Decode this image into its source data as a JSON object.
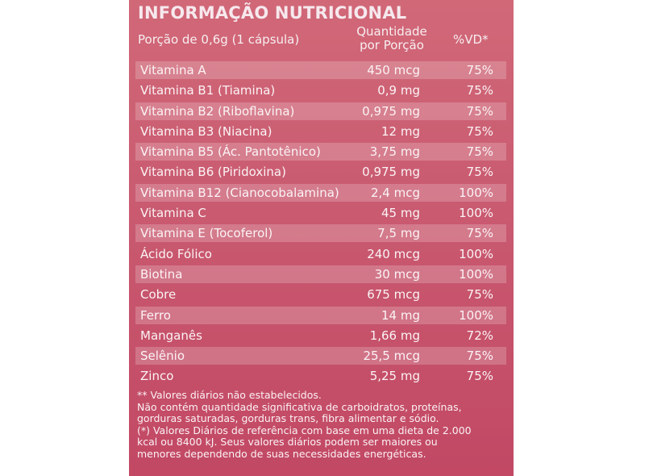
{
  "title": "INFORMAÇÃO NUTRICIONAL",
  "header": {
    "portion": "Porção de 0,6g    (1 cápsula)",
    "quantity_line1": "Quantidade",
    "quantity_line2": "por Porção",
    "vd": "%VD*"
  },
  "rows": [
    {
      "name": "Vitamina A",
      "amount": "450 mcg",
      "vd": "75%"
    },
    {
      "name": "Vitamina B1 (Tiamina)",
      "amount": "0,9 mg",
      "vd": "75%"
    },
    {
      "name": "Vitamina B2 (Riboflavina)",
      "amount": "0,975 mg",
      "vd": "75%"
    },
    {
      "name": "Vitamina B3 (Niacina)",
      "amount": "12 mg",
      "vd": "75%"
    },
    {
      "name": "Vitamina B5 (Ác. Pantotênico)",
      "amount": "3,75 mg",
      "vd": "75%"
    },
    {
      "name": "Vitamina B6 (Piridoxina)",
      "amount": "0,975 mg",
      "vd": "75%"
    },
    {
      "name": "Vitamina B12 (Cianocobalamina)",
      "amount": "2,4 mcg",
      "vd": "100%"
    },
    {
      "name": "Vitamina C",
      "amount": "45 mg",
      "vd": "100%"
    },
    {
      "name": "Vitamina E (Tocoferol)",
      "amount": "7,5 mg",
      "vd": "75%"
    },
    {
      "name": "Ácido Fólico",
      "amount": "240 mcg",
      "vd": "100%"
    },
    {
      "name": "Biotina",
      "amount": "30 mcg",
      "vd": "100%"
    },
    {
      "name": "Cobre",
      "amount": "675 mcg",
      "vd": "75%"
    },
    {
      "name": "Ferro",
      "amount": "14 mg",
      "vd": "100%"
    },
    {
      "name": "Manganês",
      "amount": "1,66 mg",
      "vd": "72%"
    },
    {
      "name": "Selênio",
      "amount": "25,5 mcg",
      "vd": "75%"
    },
    {
      "name": "Zinco",
      "amount": "5,25 mg",
      "vd": "75%"
    }
  ],
  "footnotes": [
    "** Valores diários  não estabelecidos.",
    "Não contém quantidade significativa de carboidratos, proteínas,",
    "gorduras saturadas, gorduras trans, fibra alimentar e sódio.",
    "(*) Valores Diários de referência com base em uma dieta de 2.000",
    "kcal ou 8400 kJ. Seus valores diários podem ser maiores ou",
    "menores dependendo de suas necessidades energéticas."
  ],
  "colors": {
    "panel_top": "#d16878",
    "panel_bottom": "#c24864",
    "text": "#ffffff"
  }
}
